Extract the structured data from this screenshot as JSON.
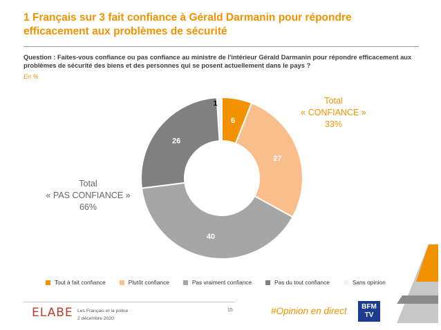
{
  "header": {
    "title": "1 Français sur 3 fait confiance à Gérald Darmanin pour répondre efficacement aux problèmes de sécurité",
    "question": "Question : Faites-vous confiance ou pas confiance au ministre de l'intérieur Gérald Darmanin pour répondre efficacement aux problèmes de sécurité des biens et des personnes qui se posent actuellement dans le pays ?",
    "unit": "En %"
  },
  "totals": {
    "confiance": {
      "line1": "Total",
      "line2": "« CONFIANCE »",
      "value": "33%"
    },
    "pas_confiance": {
      "line1": "Total",
      "line2": "« PAS CONFIANCE »",
      "value": "66%"
    }
  },
  "chart_data": {
    "type": "pie",
    "variant": "donut",
    "title": "",
    "categories": [
      "Tout à fait confiance",
      "Plutôt confiance",
      "Pas vraiment confiance",
      "Pas du tout confiance",
      "Sans opinion"
    ],
    "values": [
      6,
      27,
      40,
      26,
      1
    ],
    "labels": [
      "6",
      "27",
      "40",
      "26",
      "1"
    ],
    "colors": [
      "#f39200",
      "#f9be8c",
      "#a6a6a6",
      "#808080",
      "#f2f2f2"
    ],
    "legend_position": "bottom"
  },
  "footer": {
    "logo": "ELABE",
    "line1": "Les Français et la police",
    "line2": "2 décembre 2020",
    "page": "15",
    "hashtag": "#Opinion en direct",
    "brand": "BFM TV"
  }
}
